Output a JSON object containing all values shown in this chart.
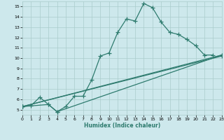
{
  "xlabel": "Humidex (Indice chaleur)",
  "xlim": [
    0,
    23
  ],
  "ylim": [
    4.5,
    15.5
  ],
  "yticks": [
    5,
    6,
    7,
    8,
    9,
    10,
    11,
    12,
    13,
    14,
    15
  ],
  "xticks": [
    0,
    1,
    2,
    3,
    4,
    5,
    6,
    7,
    8,
    9,
    10,
    11,
    12,
    13,
    14,
    15,
    16,
    17,
    18,
    19,
    20,
    21,
    22,
    23
  ],
  "bg_color": "#cde8ec",
  "grid_color": "#aacccc",
  "line_color": "#2e7b6e",
  "line_width": 0.9,
  "marker": "+",
  "marker_size": 4,
  "marker_ew": 0.9,
  "line1_x": [
    0,
    1,
    2,
    3,
    4,
    5,
    6,
    7,
    8,
    9,
    10,
    11,
    12,
    13,
    14,
    15,
    16,
    17,
    18,
    19,
    20,
    21,
    22
  ],
  "line1_y": [
    5.3,
    5.4,
    6.2,
    5.5,
    4.8,
    5.3,
    6.3,
    6.3,
    7.9,
    10.2,
    10.5,
    12.5,
    13.8,
    13.6,
    15.3,
    14.9,
    13.5,
    12.5,
    12.3,
    11.8,
    11.2,
    10.3,
    10.3
  ],
  "line2_x": [
    0,
    23
  ],
  "line2_y": [
    5.3,
    10.2
  ],
  "line3_x": [
    0,
    3,
    4,
    23
  ],
  "line3_y": [
    5.3,
    5.5,
    4.8,
    10.3
  ],
  "line4_x": [
    0,
    23
  ],
  "line4_y": [
    5.3,
    10.3
  ]
}
